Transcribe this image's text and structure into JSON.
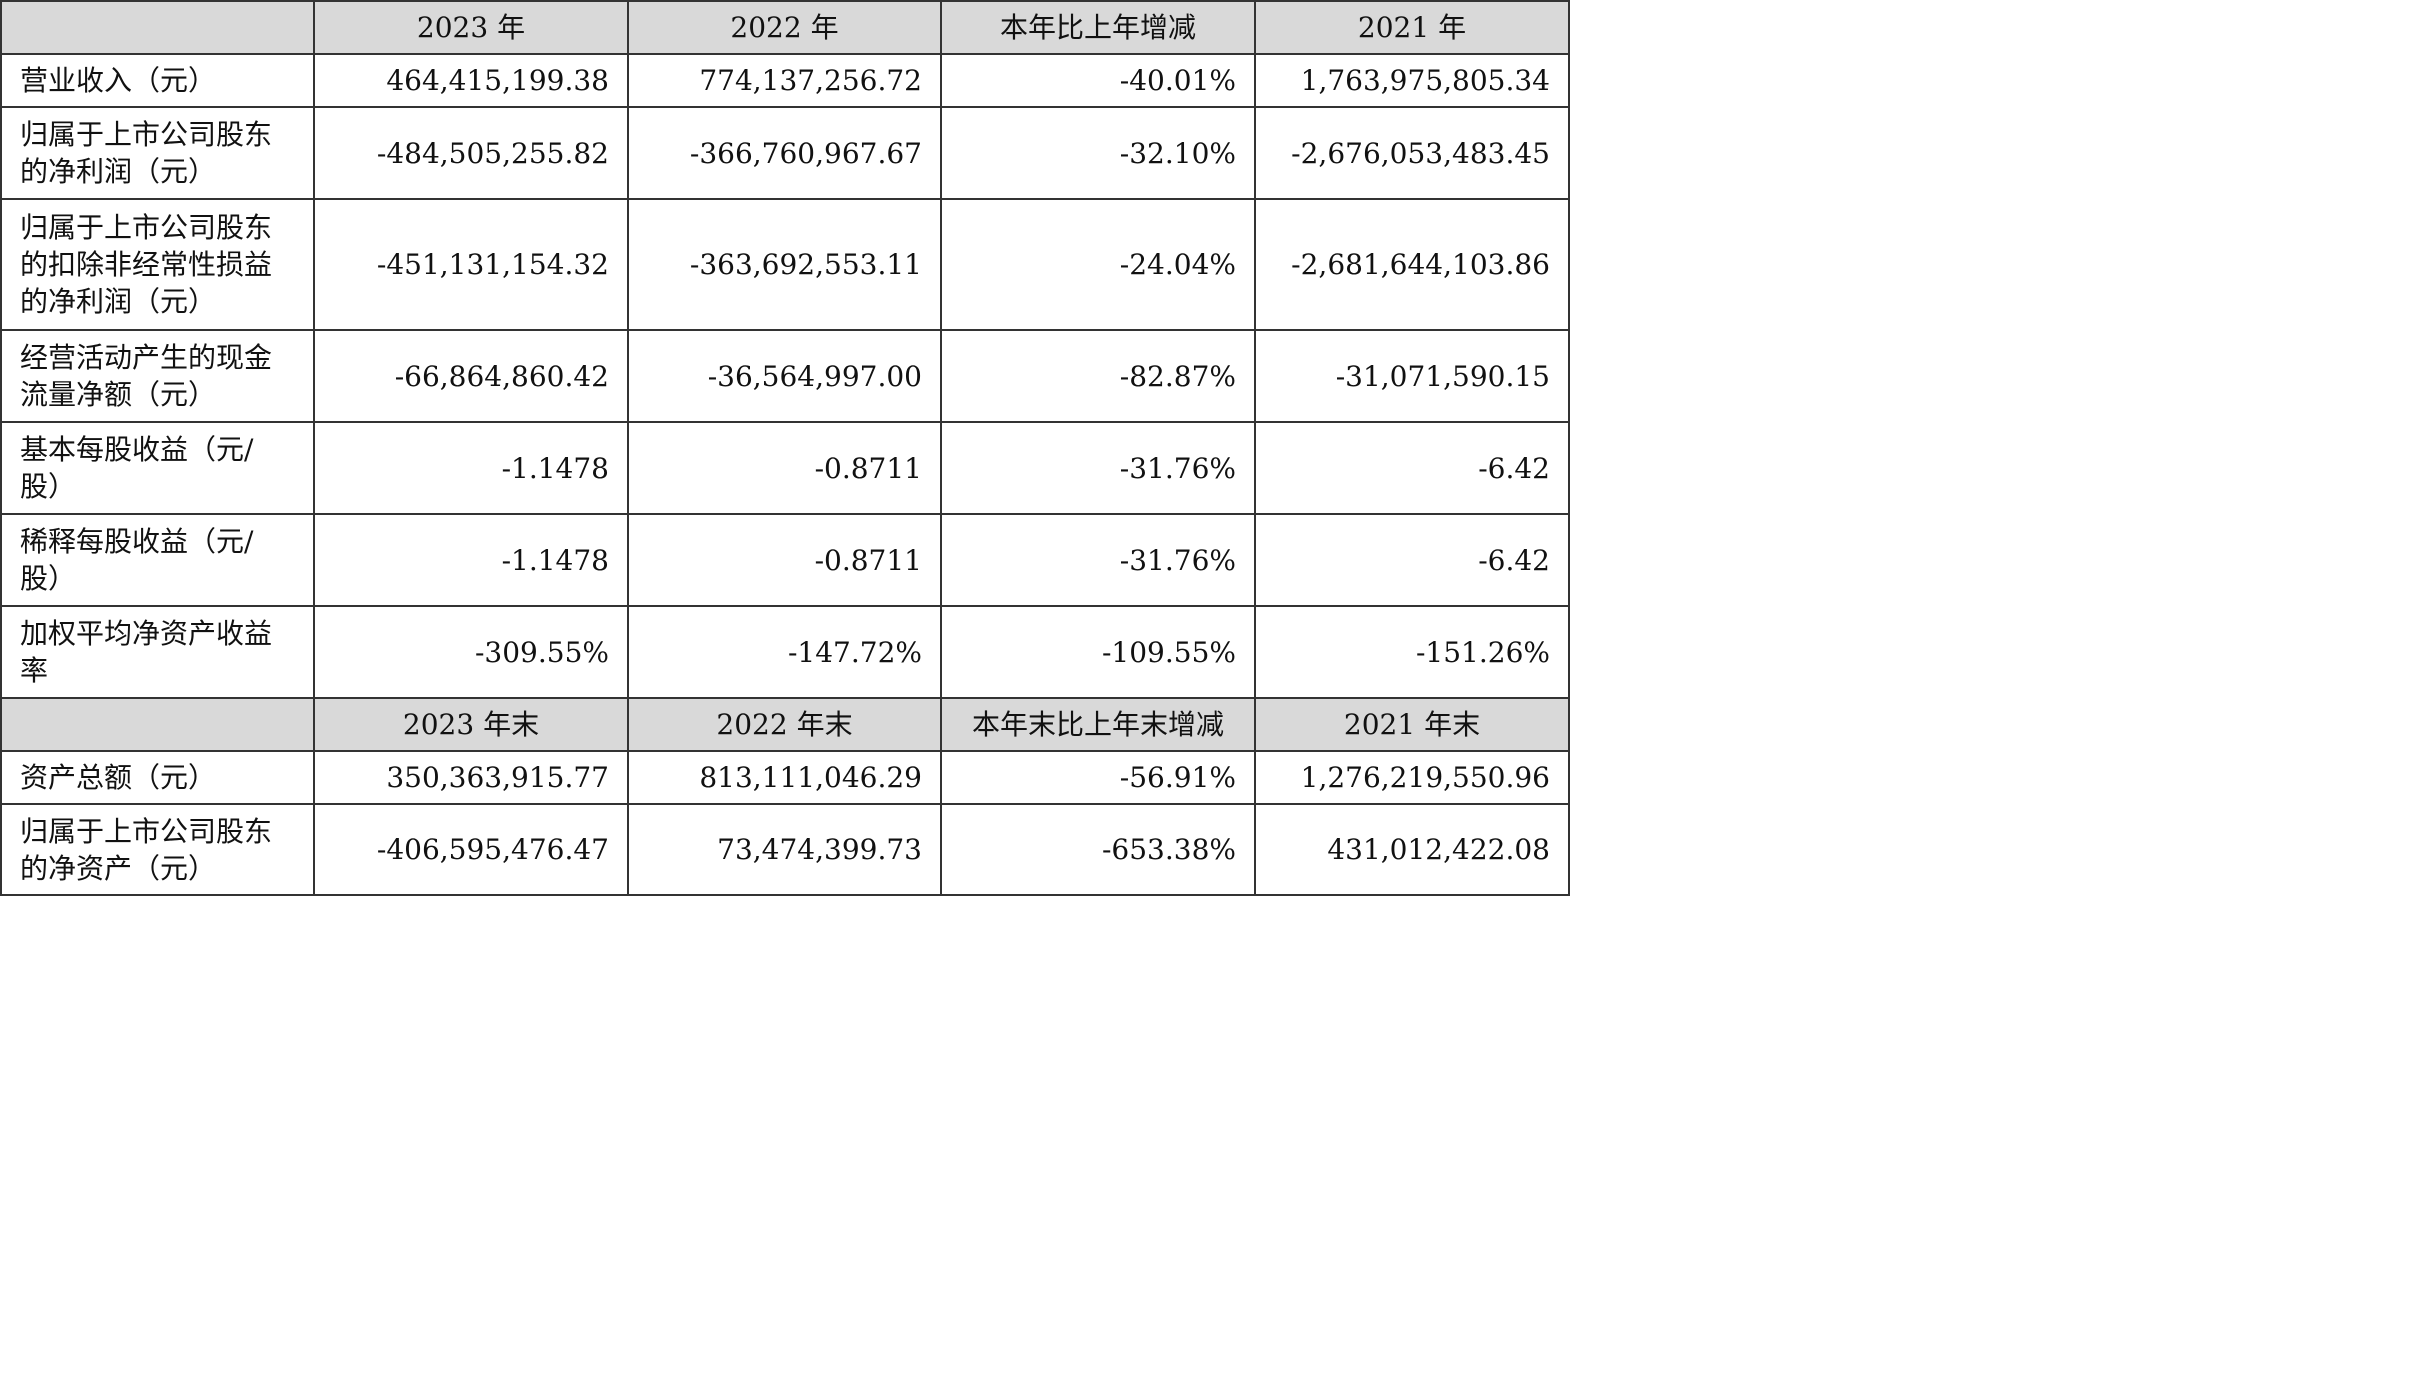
{
  "header1": [
    "2023 年",
    "2022 年",
    "本年比上年增减",
    "2021 年"
  ],
  "rows1": [
    {
      "label": "营业收入（元）",
      "values": [
        "464,415,199.38",
        "774,137,256.72",
        "-40.01%",
        "1,763,975,805.34"
      ]
    },
    {
      "label": "归属于上市公司股东的净利润（元）",
      "values": [
        "-484,505,255.82",
        "-366,760,967.67",
        "-32.10%",
        "-2,676,053,483.45"
      ]
    },
    {
      "label": "归属于上市公司股东的扣除非经常性损益的净利润（元）",
      "values": [
        "-451,131,154.32",
        "-363,692,553.11",
        "-24.04%",
        "-2,681,644,103.86"
      ]
    },
    {
      "label": "经营活动产生的现金流量净额（元）",
      "values": [
        "-66,864,860.42",
        "-36,564,997.00",
        "-82.87%",
        "-31,071,590.15"
      ]
    },
    {
      "label": "基本每股收益（元/股）",
      "values": [
        "-1.1478",
        "-0.8711",
        "-31.76%",
        "-6.42"
      ]
    },
    {
      "label": "稀释每股收益（元/股）",
      "values": [
        "-1.1478",
        "-0.8711",
        "-31.76%",
        "-6.42"
      ]
    },
    {
      "label": "加权平均净资产收益率",
      "values": [
        "-309.55%",
        "-147.72%",
        "-109.55%",
        "-151.26%"
      ]
    }
  ],
  "header2": [
    "2023 年末",
    "2022 年末",
    "本年末比上年末增减",
    "2021 年末"
  ],
  "rows2": [
    {
      "label": "资产总额（元）",
      "values": [
        "350,363,915.77",
        "813,111,046.29",
        "-56.91%",
        "1,276,219,550.96"
      ]
    },
    {
      "label": "归属于上市公司股东的净资产（元）",
      "values": [
        "-406,595,476.47",
        "73,474,399.73",
        "-653.38%",
        "431,012,422.08"
      ]
    }
  ]
}
